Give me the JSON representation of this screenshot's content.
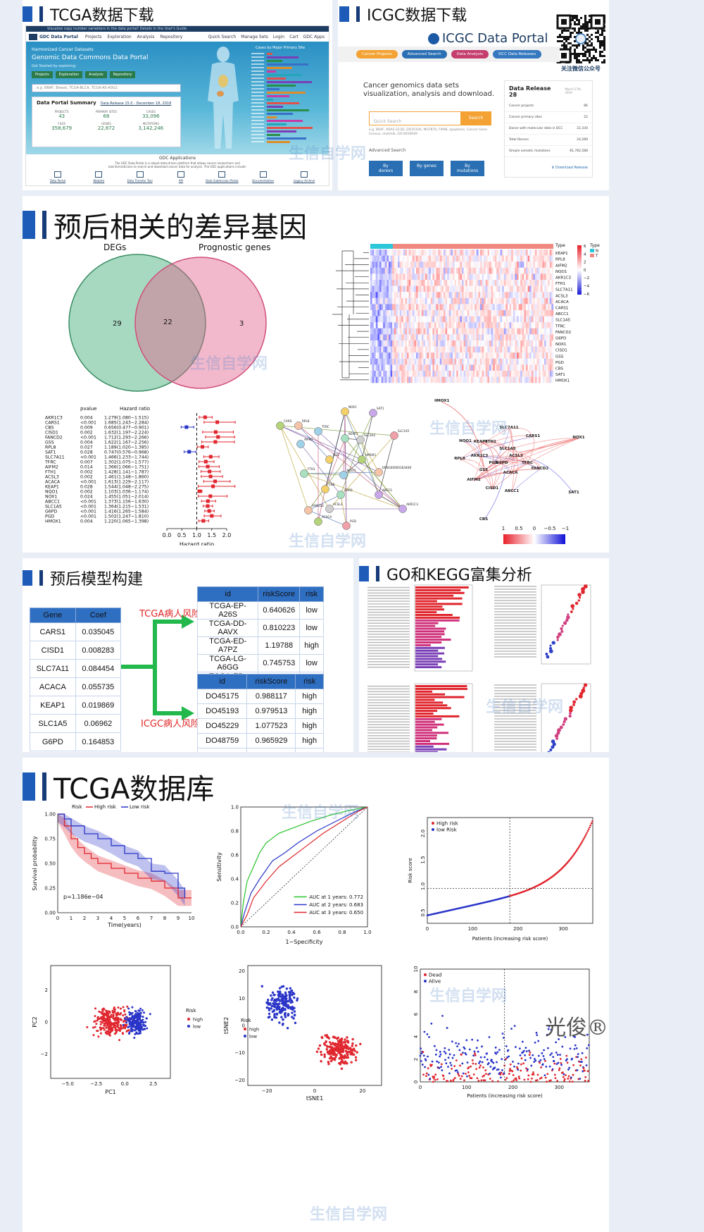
{
  "sections": {
    "tcga_download": "TCGA数据下载",
    "icgc_download": "ICGC数据下载",
    "prognostic_degs": "预后相关的差异基因",
    "model_build": "预后模型构建",
    "enrichment": "GO和KEGG富集分析",
    "tcga_db": "TCGA数据库"
  },
  "gdc": {
    "topbar": "Visualize copy number variations in the data portal! Details in the User's Guide",
    "brand": "GDC Data Portal",
    "nav": [
      "Projects",
      "Exploration",
      "Analysis",
      "Repository"
    ],
    "nav_right": [
      "Quick Search",
      "Manage Sets",
      "Login",
      "Cart",
      "GDC Apps"
    ],
    "hero_small": "Harmonized Cancer Datasets",
    "hero_title": "Genomic Data Commons Data Portal",
    "hero_sub": "Get Started by exploring:",
    "buttons": [
      "Projects",
      "Exploration",
      "Analysis",
      "Repository"
    ],
    "search_placeholder": "e.g. BRAF, Breast, TCGA-BLCA, TCGA-A5-A0G2",
    "summary_title": "Data Portal Summary",
    "summary_link": "Data Release 15.0 - December 18, 2018",
    "stats": [
      {
        "label": "PROJECTS",
        "value": "43"
      },
      {
        "label": "PRIMARY SITES",
        "value": "68"
      },
      {
        "label": "CASES",
        "value": "33,096"
      },
      {
        "label": "FILES",
        "value": "358,679"
      },
      {
        "label": "GENES",
        "value": "22,872"
      },
      {
        "label": "MUTATIONS",
        "value": "3,142,246"
      }
    ],
    "chart_title": "Cases by Major Primary Site",
    "apps_title": "GDC Applications",
    "apps_desc": "The GDC Data Portal is a robust data-driven platform that allows cancer researchers and bioinformaticians to search and download cancer data for analysis. The GDC applications include:",
    "apps": [
      "Data Portal",
      "Website",
      "Data Transfer Tool",
      "API",
      "Data Submission Portal",
      "Documentation",
      "Legacy Archive"
    ]
  },
  "icgc": {
    "logo": "ICGC Data Portal",
    "nav": [
      "Cancer Projects",
      "Advanced Search",
      "Data Analysis",
      "DCC Data Releases"
    ],
    "qr_caption": "关注微信公众号",
    "tagline": "Cancer genomics data sets visualization, analysis and download.",
    "search_placeholder": "Quick Search",
    "search_btn": "Search",
    "example": "e.g. BRAF, KRAS G12D, DO35100, MU7870, FI998, apoptosis, Cancer Gene Census, imatinib, GO:0016049",
    "advanced": "Advanced Search",
    "by_buttons": [
      "By donors",
      "By genes",
      "By mutations"
    ],
    "release_title": "Data Release 28",
    "release_date": "March 27th, 2019",
    "release_rows": [
      {
        "label": "Cancer projects",
        "value": "86"
      },
      {
        "label": "Cancer primary sites",
        "value": "22"
      },
      {
        "label": "Donor with molecular data in DCC",
        "value": "22,330"
      },
      {
        "label": "Total Donors",
        "value": "24,289"
      },
      {
        "label": "Simple somatic mutations",
        "value": "81,782,588"
      }
    ],
    "download_release": "Download Release"
  },
  "venn": {
    "left_label": "DEGs",
    "right_label": "Prognostic genes",
    "left_only": "29",
    "both": "22",
    "right_only": "3"
  },
  "heatmap": {
    "legend_title": "Type",
    "type_legend_title": "Type",
    "type_levels": [
      "N",
      "T"
    ],
    "scale_ticks": [
      "6",
      "4",
      "2",
      "0",
      "−2",
      "−4",
      "−6"
    ],
    "genes": [
      "KEAP1",
      "RPL8",
      "AIFM2",
      "NQO1",
      "AKR1C3",
      "FTH1",
      "SLC7A11",
      "ACSL3",
      "ACACA",
      "CARS1",
      "ABCC1",
      "SLC1A5",
      "TFRC",
      "FANCD2",
      "G6PD",
      "NOX1",
      "CISD1",
      "GSS",
      "PGD",
      "CBS",
      "SAT1",
      "HMOX1"
    ]
  },
  "forest": {
    "col_pvalue": "pvalue",
    "col_hr": "Hazard ratio",
    "xlabel": "Hazard ratio",
    "xticks": [
      "0.0",
      "0.5",
      "1.0",
      "1.5",
      "2.0"
    ],
    "rows": [
      {
        "gene": "AKR1C3",
        "p": "0.004",
        "hr": "1.279(1.080−1.515)",
        "est": 1.279,
        "lo": 1.08,
        "hi": 1.515
      },
      {
        "gene": "CARS1",
        "p": "<0.001",
        "hr": "1.685(1.243−2.284)",
        "est": 1.685,
        "lo": 1.243,
        "hi": 2.284
      },
      {
        "gene": "CBS",
        "p": "0.009",
        "hr": "0.656(0.477−0.901)",
        "est": 0.656,
        "lo": 0.477,
        "hi": 0.901
      },
      {
        "gene": "CISD1",
        "p": "0.002",
        "hr": "1.632(1.197−2.224)",
        "est": 1.632,
        "lo": 1.197,
        "hi": 2.224
      },
      {
        "gene": "FANCD2",
        "p": "<0.001",
        "hr": "1.712(1.293−2.266)",
        "est": 1.712,
        "lo": 1.293,
        "hi": 2.266
      },
      {
        "gene": "GSS",
        "p": "0.004",
        "hr": "1.622(1.167−2.256)",
        "est": 1.622,
        "lo": 1.167,
        "hi": 2.256
      },
      {
        "gene": "RPL8",
        "p": "0.027",
        "hr": "1.189(1.020−1.385)",
        "est": 1.189,
        "lo": 1.02,
        "hi": 1.385
      },
      {
        "gene": "SAT1",
        "p": "0.028",
        "hr": "0.747(0.576−0.968)",
        "est": 0.747,
        "lo": 0.576,
        "hi": 0.968
      },
      {
        "gene": "SLC7A11",
        "p": "<0.001",
        "hr": "1.466(1.233−1.744)",
        "est": 1.466,
        "lo": 1.233,
        "hi": 1.744
      },
      {
        "gene": "TFRC",
        "p": "0.007",
        "hr": "1.302(1.075−1.577)",
        "est": 1.302,
        "lo": 1.075,
        "hi": 1.577
      },
      {
        "gene": "AIFM2",
        "p": "0.014",
        "hr": "1.366(1.066−1.751)",
        "est": 1.366,
        "lo": 1.066,
        "hi": 1.751
      },
      {
        "gene": "FTH1",
        "p": "0.002",
        "hr": "1.428(1.141−1.787)",
        "est": 1.428,
        "lo": 1.141,
        "hi": 1.787
      },
      {
        "gene": "ACSL3",
        "p": "0.002",
        "hr": "1.461(1.148−1.860)",
        "est": 1.461,
        "lo": 1.148,
        "hi": 1.86
      },
      {
        "gene": "ACACA",
        "p": "<0.001",
        "hr": "1.613(1.229−2.117)",
        "est": 1.613,
        "lo": 1.229,
        "hi": 2.117
      },
      {
        "gene": "KEAP1",
        "p": "0.028",
        "hr": "1.544(1.048−2.275)",
        "est": 1.544,
        "lo": 1.048,
        "hi": 2.275
      },
      {
        "gene": "NQO1",
        "p": "0.002",
        "hr": "1.103(1.036−1.174)",
        "est": 1.103,
        "lo": 1.036,
        "hi": 1.174
      },
      {
        "gene": "NOX1",
        "p": "0.024",
        "hr": "1.455(1.051−2.014)",
        "est": 1.455,
        "lo": 1.051,
        "hi": 2.014
      },
      {
        "gene": "ABCC1",
        "p": "<0.001",
        "hr": "1.373(1.156−1.630)",
        "est": 1.373,
        "lo": 1.156,
        "hi": 1.63
      },
      {
        "gene": "SLC1A5",
        "p": "<0.001",
        "hr": "1.364(1.215−1.531)",
        "est": 1.364,
        "lo": 1.215,
        "hi": 1.531
      },
      {
        "gene": "G6PD",
        "p": "<0.001",
        "hr": "1.416(1.265−1.584)",
        "est": 1.416,
        "lo": 1.265,
        "hi": 1.584
      },
      {
        "gene": "PGD",
        "p": "<0.001",
        "hr": "1.502(1.247−1.810)",
        "est": 1.502,
        "lo": 1.247,
        "hi": 1.81
      },
      {
        "gene": "HMOX1",
        "p": "0.004",
        "hr": "1.220(1.065−1.398)",
        "est": 1.22,
        "lo": 1.065,
        "hi": 1.398
      }
    ]
  },
  "ppi_nodes": [
    "CARS",
    "RPL8",
    "TFRC",
    "NOX1",
    "SAT1",
    "KEAP1",
    "SLC1A5",
    "SLC3A2",
    "HMOX1",
    "ENSG00000183408",
    "NQO1",
    "GSS",
    "ABCC1",
    "G6PD",
    "PGD",
    "ACSL3",
    "ACACA",
    "FANCD2",
    "AIFM2",
    "CBS",
    "AKR1C3",
    "FTH1"
  ],
  "corr": {
    "genes": [
      "HMOX1",
      "FTH1",
      "SLC7A11",
      "CARS1",
      "NOX1",
      "NQO1",
      "KEAP1",
      "SLC1A5",
      "ACSL3",
      "RPL8",
      "AKR1C3",
      "G6PD",
      "TFRC",
      "GSS",
      "PGD",
      "FANCD2",
      "AIFM2",
      "ACACA",
      "CISD1",
      "ABCC1",
      "CBS",
      "SAT1"
    ],
    "scale_ticks": [
      "1",
      "0.5",
      "0",
      "−0.5",
      "−1"
    ]
  },
  "coef_table": {
    "headers": [
      "Gene",
      "Coef"
    ],
    "rows": [
      [
        "CARS1",
        "0.035045"
      ],
      [
        "CISD1",
        "0.008283"
      ],
      [
        "SLC7A11",
        "0.084454"
      ],
      [
        "ACACA",
        "0.055735"
      ],
      [
        "KEAP1",
        "0.019869"
      ],
      [
        "SLC1A5",
        "0.06962"
      ],
      [
        "G6PD",
        "0.164853"
      ]
    ]
  },
  "tcga_risk_label": "TCGA病人风险",
  "icgc_risk_label": "ICGC病人风险",
  "tcga_risk_table": {
    "headers": [
      "id",
      "riskScore",
      "risk"
    ],
    "rows": [
      [
        "TCGA-EP-A26S",
        "0.640626",
        "low"
      ],
      [
        "TCGA-DD-AAVX",
        "0.810223",
        "low"
      ],
      [
        "TCGA-ED-A7PZ",
        "1.19788",
        "high"
      ],
      [
        "TCGA-LG-A6GG",
        "0.745753",
        "low"
      ],
      [
        "TCGA-ED-A97K",
        "1.351681",
        "high"
      ]
    ]
  },
  "icgc_risk_table": {
    "headers": [
      "id",
      "riskScore",
      "risk"
    ],
    "rows": [
      [
        "DO45175",
        "0.988117",
        "high"
      ],
      [
        "DO45193",
        "0.979513",
        "high"
      ],
      [
        "DO45229",
        "1.077523",
        "high"
      ],
      [
        "DO48759",
        "0.965929",
        "high"
      ],
      [
        "DO23548",
        "0.925432",
        "low"
      ]
    ]
  },
  "km": {
    "legend_title": "Risk",
    "legend": [
      "High risk",
      "Low risk"
    ],
    "ylabel": "Survival probability",
    "xlabel": "Time(years)",
    "pvalue": "p=1.186e−04",
    "xticks": [
      "0",
      "1",
      "2",
      "3",
      "4",
      "5",
      "6",
      "7",
      "8",
      "9",
      "10"
    ],
    "yticks": [
      "0.00",
      "0.25",
      "0.50",
      "0.75",
      "1.00"
    ]
  },
  "roc": {
    "ylabel": "Sensitivity",
    "xlabel": "1−Specificity",
    "ticks": [
      "0.0",
      "0.2",
      "0.4",
      "0.6",
      "0.8",
      "1.0"
    ],
    "legend": [
      "AUC at 1 years: 0.772",
      "AUC at 2 years: 0.683",
      "AUC at 3 years: 0.650"
    ]
  },
  "risk_curve": {
    "legend": [
      "High risk",
      "low Risk"
    ],
    "ylabel": "Risk score",
    "xlabel": "Patients (increasing risk score)",
    "xticks": [
      "0",
      "100",
      "200",
      "300"
    ],
    "yticks": [
      "0.5",
      "1.0",
      "1.5",
      "2.0"
    ]
  },
  "pca": {
    "xlabel": "PC1",
    "ylabel": "PC2",
    "legend_title": "Risk",
    "legend": [
      "high",
      "low"
    ],
    "xticks": [
      "−5.0",
      "−2.5",
      "0.0",
      "2.5"
    ],
    "yticks": [
      "−2",
      "0",
      "2"
    ]
  },
  "tsne": {
    "xlabel": "tSNE1",
    "ylabel": "tSNE2",
    "legend_title": "Risk",
    "legend": [
      "high",
      "low"
    ],
    "xticks": [
      "−20",
      "0",
      "20"
    ],
    "yticks": [
      "−20",
      "−10",
      "0",
      "10",
      "20"
    ]
  },
  "surv_status": {
    "legend": [
      "Dead",
      "Alive"
    ],
    "xlabel": "Patients (increasing risk score)",
    "xticks": [
      "0",
      "100",
      "200",
      "300"
    ],
    "yticks": [
      "0",
      "2",
      "4",
      "6",
      "8",
      "10"
    ]
  },
  "brand": "光俊®",
  "watermark": "生信自学网",
  "watermark_url": "www.biowolf.cn"
}
